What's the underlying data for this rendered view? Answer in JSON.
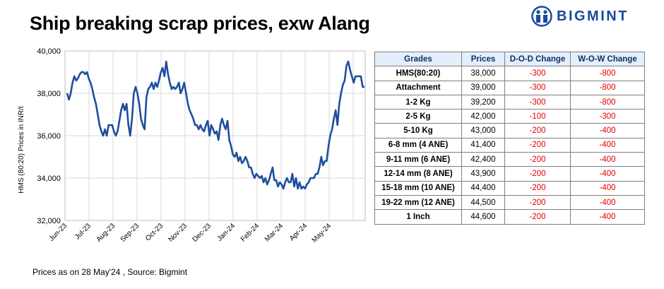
{
  "header": {
    "title": "Ship breaking scrap prices, exw Alang",
    "logo_text": "BIGMINT"
  },
  "footnote": "Prices as on 28 May'24 , Source:  Bigmint",
  "chart_data": {
    "type": "line",
    "ylabel": "HMS (80:20) Prices in INR/t",
    "ylim": [
      32000,
      40000
    ],
    "yticks": [
      "32,000",
      "34,000",
      "36,000",
      "38,000",
      "40,000"
    ],
    "xlabels": [
      "Jun-23",
      "Jul-23",
      "Aug-23",
      "Sep-23",
      "Oct-23",
      "Nov-23",
      "Dec-23",
      "Jan-24",
      "Feb-24",
      "Mar-24",
      "Apr-24",
      "May-24"
    ],
    "grid": true,
    "color": "#1f4e9e",
    "series": [
      {
        "values": [
          38000,
          37700,
          38000,
          38500,
          38800,
          38600,
          38700,
          38900,
          39000,
          39000,
          38900,
          39000,
          38700,
          38500,
          38200,
          37800,
          37500,
          37000,
          36500,
          36200,
          36000,
          36300,
          36000,
          36500,
          36500,
          36500,
          36200,
          36000,
          36200,
          36700,
          37200,
          37500,
          37200,
          37500,
          36500,
          36000,
          36800,
          38000,
          38300,
          38000,
          37500,
          36800,
          36500,
          36300,
          37800,
          38200,
          38300,
          38500,
          38200,
          38500,
          38300,
          38600,
          39000,
          39200,
          38800,
          39500,
          38900,
          38500,
          38200,
          38300,
          38200,
          38300,
          38500,
          38000,
          38200,
          38500,
          38000,
          37500,
          37200,
          37000,
          36800,
          36500,
          36500,
          36300,
          36500,
          36300,
          36200,
          36500,
          36700,
          36000,
          36500,
          36300,
          36100,
          36200,
          35800,
          36500,
          36800,
          36500,
          36300,
          36700,
          35800,
          35500,
          35100,
          35000,
          35200,
          34800,
          35000,
          34700,
          34800,
          35000,
          34800,
          34500,
          34500,
          34200,
          34000,
          34200,
          34100,
          34000,
          34100,
          33800,
          34000,
          33700,
          33900,
          34200,
          34500,
          33900,
          33900,
          33600,
          33800,
          33700,
          33500,
          33800,
          34000,
          33800,
          33800,
          34200,
          33600,
          34000,
          33500,
          33800,
          33500,
          33600,
          33500,
          33700,
          33800,
          34000,
          34000,
          34000,
          34200,
          34200,
          34500,
          35000,
          34600,
          34800,
          34800,
          35500,
          36000,
          36300,
          36800,
          37200,
          36500,
          37500,
          38000,
          38400,
          38600,
          39300,
          39500,
          39100,
          38800,
          38500,
          38800,
          38800,
          38800,
          38800,
          38300,
          38300
        ]
      }
    ]
  },
  "table": {
    "headers": [
      "Grades",
      "Prices",
      "D-O-D Change",
      "W-O-W Change"
    ],
    "rows": [
      [
        "HMS(80:20)",
        "38,000",
        "-300",
        "-800"
      ],
      [
        "Attachment",
        "39,000",
        "-300",
        "-800"
      ],
      [
        "1-2 Kg",
        "39,200",
        "-300",
        "-800"
      ],
      [
        "2-5 Kg",
        "42,000",
        "-100",
        "-300"
      ],
      [
        "5-10 Kg",
        "43,000",
        "-200",
        "-400"
      ],
      [
        "6-8 mm (4 ANE)",
        "41,400",
        "-200",
        "-400"
      ],
      [
        "9-11 mm (6 ANE)",
        "42,400",
        "-200",
        "-400"
      ],
      [
        "12-14 mm (8 ANE)",
        "43,900",
        "-200",
        "-400"
      ],
      [
        "15-18 mm (10 ANE)",
        "44,400",
        "-200",
        "-400"
      ],
      [
        "19-22 mm (12 ANE)",
        "44,500",
        "-200",
        "-400"
      ],
      [
        "1 Inch",
        "44,600",
        "-200",
        "-400"
      ]
    ],
    "colors": {
      "header_bg": "#e3effa",
      "header_text": "#0d2f6b",
      "change_text": "#e60000"
    }
  }
}
